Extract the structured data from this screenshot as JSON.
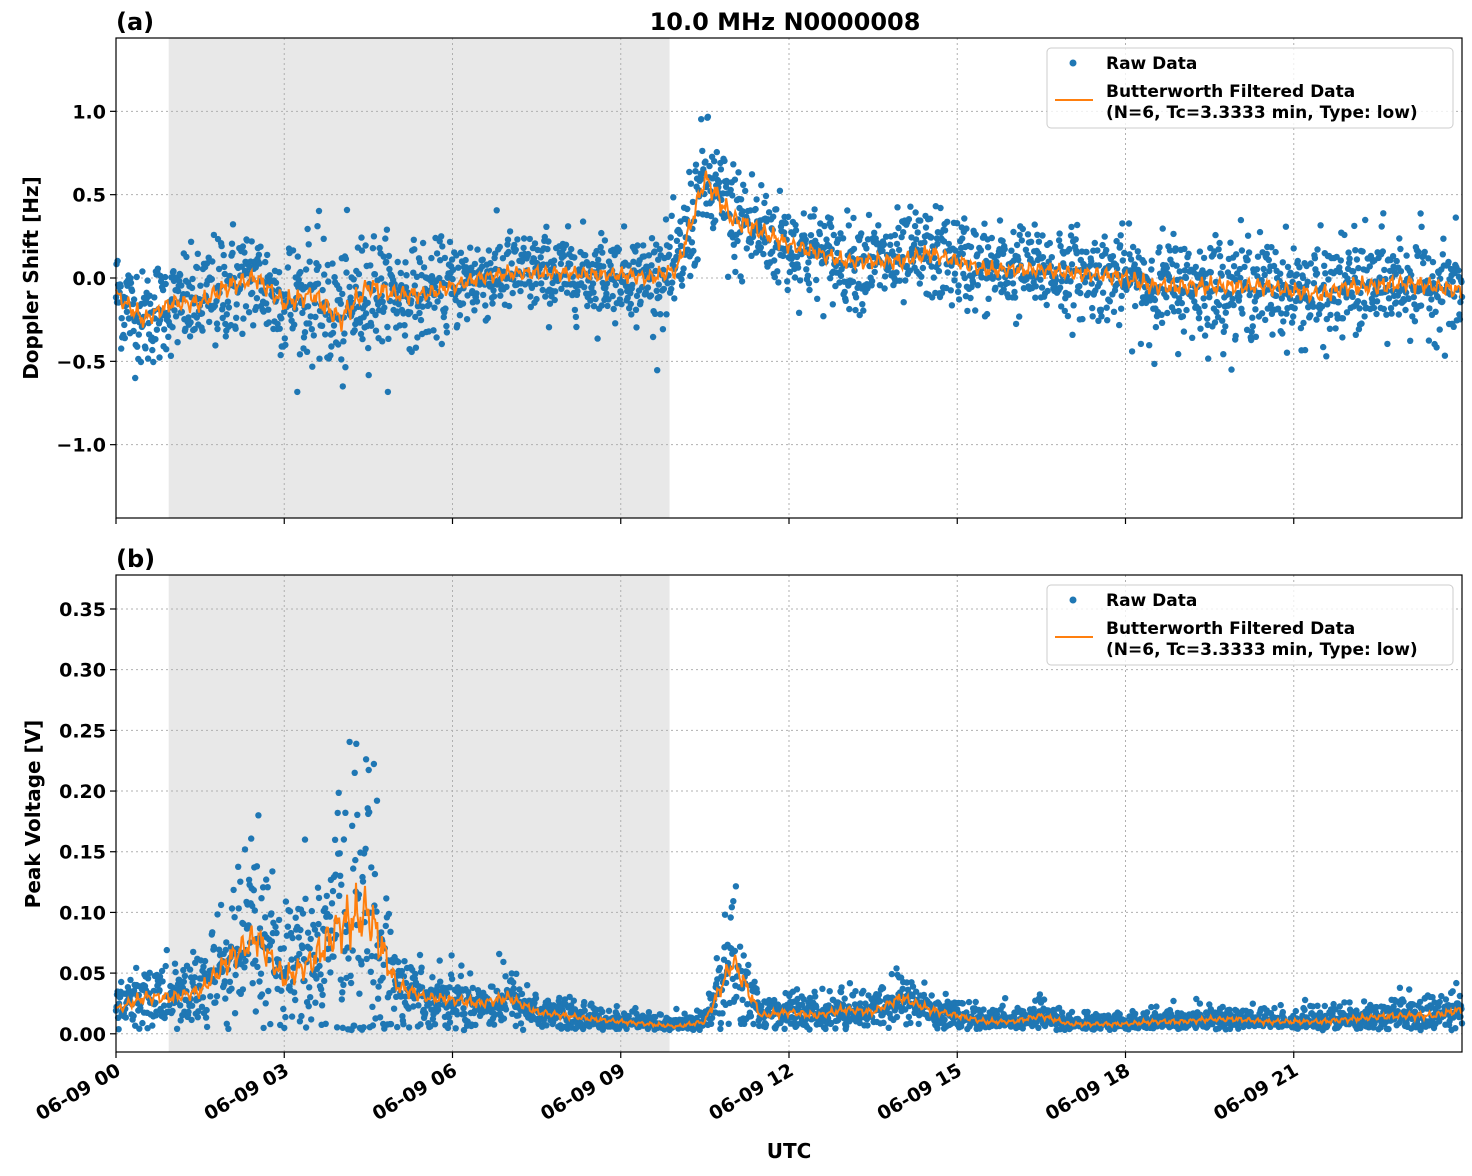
{
  "chart_data": [
    {
      "type": "scatter",
      "panel_label": "(a)",
      "title": "10.0 MHz N0000008",
      "xlabel": "",
      "ylabel": "Doppler Shift [Hz]",
      "xlim_hours_utc": [
        0,
        24
      ],
      "ylim": [
        -1.44,
        1.44
      ],
      "grid": true,
      "grid_style": "dotted",
      "legend_placement": "top-right",
      "shaded_region_hours_utc": [
        0.94,
        9.87
      ],
      "shaded_color": "#e8e8e8",
      "x_tick_labels": [
        "06-09 00",
        "06-09 03",
        "06-09 06",
        "06-09 09",
        "06-09 12",
        "06-09 15",
        "06-09 18",
        "06-09 21"
      ],
      "x_tick_hours": [
        0,
        3,
        6,
        9,
        12,
        15,
        18,
        21
      ],
      "y_ticks": [
        -1.0,
        -0.5,
        0.0,
        0.5,
        1.0
      ],
      "y_tick_labels": [
        "−1.0",
        "−0.5",
        "0.0",
        "0.5",
        "1.0"
      ],
      "series": [
        {
          "name": "Raw Data",
          "kind": "scatter",
          "color": "#1f77b4",
          "spread": [
            0.15,
            0.15,
            0.14,
            0.15,
            0.17,
            0.16,
            0.17,
            0.17,
            0.2,
            0.18,
            0.15,
            0.14,
            0.13,
            0.12,
            0.12,
            0.12,
            0.12,
            0.12,
            0.12,
            0.13,
            0.15,
            0.18,
            0.18,
            0.16,
            0.14,
            0.13,
            0.13,
            0.13,
            0.14,
            0.14,
            0.13,
            0.13,
            0.13,
            0.13,
            0.13,
            0.13,
            0.14,
            0.15,
            0.15,
            0.15,
            0.14,
            0.14,
            0.14,
            0.15,
            0.15,
            0.15,
            0.14,
            0.14,
            0.14
          ]
        },
        {
          "name": "Butterworth Filtered Data",
          "name_line2": "(N=6, Tc=3.3333 min, Type: low)",
          "kind": "line",
          "color": "#ff7f0e",
          "x_hours": [
            0,
            0.5,
            1,
            1.5,
            2,
            2.5,
            3,
            3.5,
            4,
            4.5,
            5,
            5.5,
            6,
            6.5,
            7,
            7.5,
            8,
            8.5,
            9,
            9.5,
            10,
            10.5,
            11,
            11.5,
            12,
            12.5,
            13,
            13.5,
            14,
            14.5,
            15,
            15.5,
            16,
            16.5,
            17,
            17.5,
            18,
            18.5,
            19,
            19.5,
            20,
            20.5,
            21,
            21.5,
            22,
            22.5,
            23,
            23.5,
            24
          ],
          "values": [
            -0.1,
            -0.25,
            -0.15,
            -0.15,
            -0.05,
            0.0,
            -0.15,
            -0.1,
            -0.25,
            -0.05,
            -0.1,
            -0.1,
            -0.05,
            0.0,
            0.03,
            0.03,
            0.03,
            0.02,
            0.02,
            0.0,
            0.05,
            0.6,
            0.35,
            0.28,
            0.2,
            0.15,
            0.1,
            0.1,
            0.1,
            0.15,
            0.1,
            0.05,
            0.05,
            0.05,
            0.03,
            0.02,
            0.0,
            -0.05,
            -0.05,
            -0.05,
            -0.05,
            -0.05,
            -0.08,
            -0.1,
            -0.05,
            -0.05,
            -0.03,
            -0.05,
            -0.08
          ]
        }
      ]
    },
    {
      "type": "scatter",
      "panel_label": "(b)",
      "title": "",
      "xlabel": "UTC",
      "ylabel": "Peak Voltage [V]",
      "xlim_hours_utc": [
        0,
        24
      ],
      "ylim": [
        -0.015,
        0.378
      ],
      "grid": true,
      "grid_style": "dotted",
      "legend_placement": "top-right",
      "shaded_region_hours_utc": [
        0.94,
        9.87
      ],
      "shaded_color": "#e8e8e8",
      "x_tick_labels": [
        "06-09 00",
        "06-09 03",
        "06-09 06",
        "06-09 09",
        "06-09 12",
        "06-09 15",
        "06-09 18",
        "06-09 21"
      ],
      "x_tick_hours": [
        0,
        3,
        6,
        9,
        12,
        15,
        18,
        21
      ],
      "y_ticks": [
        0.0,
        0.05,
        0.1,
        0.15,
        0.2,
        0.25,
        0.3,
        0.35
      ],
      "y_tick_labels": [
        "0.00",
        "0.05",
        "0.10",
        "0.15",
        "0.20",
        "0.25",
        "0.30",
        "0.35"
      ],
      "series": [
        {
          "name": "Raw Data",
          "kind": "scatter",
          "color": "#1f77b4",
          "spread": [
            0.01,
            0.015,
            0.014,
            0.016,
            0.03,
            0.04,
            0.025,
            0.035,
            0.06,
            0.07,
            0.02,
            0.012,
            0.012,
            0.012,
            0.013,
            0.008,
            0.007,
            0.006,
            0.005,
            0.005,
            0.004,
            0.006,
            0.03,
            0.008,
            0.009,
            0.008,
            0.009,
            0.008,
            0.012,
            0.009,
            0.007,
            0.006,
            0.005,
            0.007,
            0.005,
            0.005,
            0.005,
            0.006,
            0.006,
            0.006,
            0.006,
            0.006,
            0.006,
            0.006,
            0.007,
            0.007,
            0.008,
            0.008,
            0.009
          ]
        },
        {
          "name": "Butterworth Filtered Data",
          "name_line2": "(N=6, Tc=3.3333 min, Type: low)",
          "kind": "line",
          "color": "#ff7f0e",
          "x_hours": [
            0,
            0.5,
            1,
            1.5,
            2,
            2.5,
            3,
            3.5,
            4,
            4.5,
            5,
            5.5,
            6,
            6.5,
            7,
            7.5,
            8,
            8.5,
            9,
            9.5,
            10,
            10.5,
            11,
            11.5,
            12,
            12.5,
            13,
            13.5,
            14,
            14.5,
            15,
            15.5,
            16,
            16.5,
            17,
            17.5,
            18,
            18.5,
            19,
            19.5,
            20,
            20.5,
            21,
            21.5,
            22,
            22.5,
            23,
            23.5,
            24
          ],
          "values": [
            0.02,
            0.03,
            0.03,
            0.035,
            0.06,
            0.08,
            0.045,
            0.06,
            0.09,
            0.1,
            0.04,
            0.03,
            0.028,
            0.025,
            0.03,
            0.018,
            0.015,
            0.012,
            0.01,
            0.008,
            0.006,
            0.01,
            0.06,
            0.015,
            0.018,
            0.015,
            0.02,
            0.018,
            0.03,
            0.02,
            0.015,
            0.01,
            0.01,
            0.015,
            0.008,
            0.008,
            0.008,
            0.01,
            0.01,
            0.012,
            0.012,
            0.01,
            0.01,
            0.01,
            0.012,
            0.014,
            0.015,
            0.015,
            0.02
          ]
        }
      ]
    }
  ]
}
